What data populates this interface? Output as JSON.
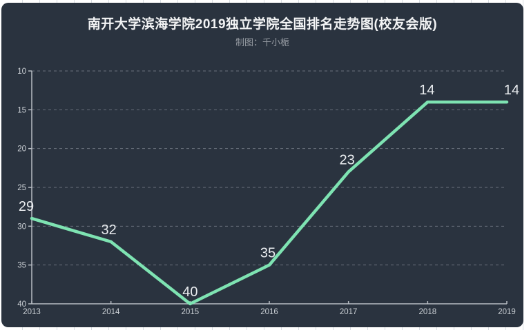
{
  "page": {
    "background": "#ffffff",
    "grid_line_color": "#d9dde2"
  },
  "panel": {
    "background": "#2a333f"
  },
  "header": {
    "title": "南开大学滨海学院2019独立学院全国排名走势图(校友会版)",
    "subtitle": "制图：千小栀",
    "title_color": "#f3f4f5",
    "subtitle_color": "#979ca3"
  },
  "chart_data": {
    "type": "line",
    "title": "南开大学滨海学院2019独立学院全国排名走势图(校友会版)",
    "subtitle": "制图：千小栀",
    "categories": [
      "2013",
      "2014",
      "2015",
      "2016",
      "2017",
      "2018",
      "2019"
    ],
    "values": [
      29,
      32,
      40,
      35,
      23,
      14,
      14
    ],
    "xlabel": "",
    "ylabel": "",
    "y_axis": {
      "min": 10,
      "max": 40,
      "ticks": [
        10,
        15,
        20,
        25,
        30,
        35,
        40
      ],
      "inverted_rank_axis": true
    },
    "ylim_top_to_bottom": [
      10,
      40
    ],
    "grid": "horizontal dashed",
    "legend": "none",
    "colors": {
      "line": "#7ee3b2",
      "axis": "#b7bcc3",
      "gridline": "#6b727d",
      "tick_label": "#ccd1d6",
      "data_label": "#e9ecef"
    }
  }
}
